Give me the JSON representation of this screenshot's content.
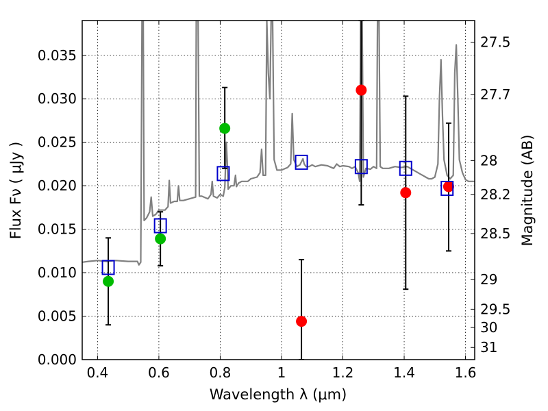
{
  "chart_data": {
    "type": "scatter",
    "title": "",
    "xlabel": "Wavelength  λ (μm)",
    "ylabel": "Flux  Fν  ( μJy )",
    "ylabel_right": "Magnitude (AB)",
    "xlim": [
      0.35,
      1.63
    ],
    "ylim": [
      0.0,
      0.039
    ],
    "grid": true,
    "x_ticks": [
      0.4,
      0.6,
      0.8,
      1.0,
      1.2,
      1.4,
      1.6
    ],
    "x_tick_labels": [
      "0.4",
      "0.6",
      "0.8",
      "1",
      "1.2",
      "1.4",
      "1.6"
    ],
    "y_ticks": [
      0.0,
      0.005,
      0.01,
      0.015,
      0.02,
      0.025,
      0.03,
      0.035
    ],
    "y_tick_labels": [
      "0.000",
      "0.005",
      "0.010",
      "0.015",
      "0.020",
      "0.025",
      "0.030",
      "0.035"
    ],
    "right_ticks": [
      {
        "flux": 0.0365,
        "label": "27.5"
      },
      {
        "flux": 0.0305,
        "label": "27.7"
      },
      {
        "flux": 0.0229,
        "label": "28"
      },
      {
        "flux": 0.019,
        "label": "28.2"
      },
      {
        "flux": 0.0145,
        "label": "28.5"
      },
      {
        "flux": 0.0092,
        "label": "29"
      },
      {
        "flux": 0.0058,
        "label": "29.5"
      },
      {
        "flux": 0.0037,
        "label": "30"
      },
      {
        "flux": 0.0014,
        "label": "31"
      }
    ],
    "series": [
      {
        "kind": "line",
        "color": "#808080",
        "points": [
          [
            0.35,
            0.0112
          ],
          [
            0.37,
            0.0113
          ],
          [
            0.4,
            0.0114
          ],
          [
            0.43,
            0.0113
          ],
          [
            0.46,
            0.0114
          ],
          [
            0.5,
            0.0113
          ],
          [
            0.53,
            0.0113
          ],
          [
            0.535,
            0.0109
          ],
          [
            0.541,
            0.0112
          ],
          [
            0.545,
            0.039
          ],
          [
            0.549,
            0.039
          ],
          [
            0.552,
            0.016
          ],
          [
            0.56,
            0.0163
          ],
          [
            0.57,
            0.017
          ],
          [
            0.575,
            0.0187
          ],
          [
            0.58,
            0.0165
          ],
          [
            0.59,
            0.0167
          ],
          [
            0.6,
            0.0172
          ],
          [
            0.62,
            0.0172
          ],
          [
            0.63,
            0.0176
          ],
          [
            0.634,
            0.0206
          ],
          [
            0.638,
            0.018
          ],
          [
            0.65,
            0.0182
          ],
          [
            0.66,
            0.0182
          ],
          [
            0.664,
            0.02
          ],
          [
            0.668,
            0.0183
          ],
          [
            0.68,
            0.0183
          ],
          [
            0.7,
            0.0185
          ],
          [
            0.72,
            0.0187
          ],
          [
            0.722,
            0.039
          ],
          [
            0.728,
            0.039
          ],
          [
            0.732,
            0.0188
          ],
          [
            0.74,
            0.0188
          ],
          [
            0.76,
            0.0185
          ],
          [
            0.77,
            0.019
          ],
          [
            0.774,
            0.0205
          ],
          [
            0.778,
            0.0188
          ],
          [
            0.79,
            0.0186
          ],
          [
            0.8,
            0.019
          ],
          [
            0.81,
            0.0188
          ],
          [
            0.815,
            0.0198
          ],
          [
            0.82,
            0.025
          ],
          [
            0.823,
            0.0228
          ],
          [
            0.826,
            0.0196
          ],
          [
            0.835,
            0.02
          ],
          [
            0.845,
            0.02
          ],
          [
            0.85,
            0.0212
          ],
          [
            0.853,
            0.0199
          ],
          [
            0.86,
            0.0203
          ],
          [
            0.87,
            0.0205
          ],
          [
            0.88,
            0.0205
          ],
          [
            0.89,
            0.0205
          ],
          [
            0.9,
            0.0208
          ],
          [
            0.92,
            0.021
          ],
          [
            0.93,
            0.0215
          ],
          [
            0.935,
            0.0242
          ],
          [
            0.94,
            0.0212
          ],
          [
            0.948,
            0.0212
          ],
          [
            0.952,
            0.039
          ],
          [
            0.957,
            0.033
          ],
          [
            0.962,
            0.03
          ],
          [
            0.966,
            0.039
          ],
          [
            0.971,
            0.039
          ],
          [
            0.976,
            0.023
          ],
          [
            0.985,
            0.0218
          ],
          [
            1.0,
            0.0218
          ],
          [
            1.02,
            0.0221
          ],
          [
            1.03,
            0.0225
          ],
          [
            1.035,
            0.0283
          ],
          [
            1.04,
            0.023
          ],
          [
            1.05,
            0.0222
          ],
          [
            1.06,
            0.0224
          ],
          [
            1.07,
            0.0231
          ],
          [
            1.074,
            0.0225
          ],
          [
            1.08,
            0.0222
          ],
          [
            1.09,
            0.0222
          ],
          [
            1.1,
            0.0224
          ],
          [
            1.11,
            0.0222
          ],
          [
            1.13,
            0.0224
          ],
          [
            1.15,
            0.0223
          ],
          [
            1.17,
            0.022
          ],
          [
            1.18,
            0.0225
          ],
          [
            1.19,
            0.0222
          ],
          [
            1.2,
            0.0223
          ],
          [
            1.22,
            0.0222
          ],
          [
            1.23,
            0.022
          ],
          [
            1.24,
            0.0222
          ],
          [
            1.25,
            0.0215
          ],
          [
            1.255,
            0.0205
          ],
          [
            1.258,
            0.039
          ],
          [
            1.263,
            0.039
          ],
          [
            1.267,
            0.021
          ],
          [
            1.275,
            0.022
          ],
          [
            1.29,
            0.0219
          ],
          [
            1.3,
            0.0222
          ],
          [
            1.31,
            0.022
          ],
          [
            1.313,
            0.039
          ],
          [
            1.318,
            0.039
          ],
          [
            1.322,
            0.0222
          ],
          [
            1.33,
            0.022
          ],
          [
            1.35,
            0.022
          ],
          [
            1.37,
            0.0222
          ],
          [
            1.39,
            0.0221
          ],
          [
            1.41,
            0.0222
          ],
          [
            1.43,
            0.0218
          ],
          [
            1.44,
            0.0216
          ],
          [
            1.45,
            0.0214
          ],
          [
            1.46,
            0.0212
          ],
          [
            1.47,
            0.021
          ],
          [
            1.48,
            0.0208
          ],
          [
            1.49,
            0.0208
          ],
          [
            1.5,
            0.021
          ],
          [
            1.51,
            0.0225
          ],
          [
            1.515,
            0.03
          ],
          [
            1.52,
            0.0345
          ],
          [
            1.525,
            0.028
          ],
          [
            1.53,
            0.023
          ],
          [
            1.54,
            0.0212
          ],
          [
            1.55,
            0.0208
          ],
          [
            1.56,
            0.0212
          ],
          [
            1.565,
            0.033
          ],
          [
            1.57,
            0.0362
          ],
          [
            1.575,
            0.03
          ],
          [
            1.58,
            0.023
          ],
          [
            1.59,
            0.0215
          ],
          [
            1.6,
            0.0207
          ],
          [
            1.61,
            0.0205
          ],
          [
            1.63,
            0.0205
          ]
        ]
      },
      {
        "kind": "markers",
        "marker": "circle",
        "color": "#00bb00",
        "points": [
          {
            "x": 0.435,
            "y": 0.009,
            "yerr_low": 0.004,
            "yerr_high": 0.014
          },
          {
            "x": 0.605,
            "y": 0.0139,
            "yerr_low": 0.0108,
            "yerr_high": 0.017
          },
          {
            "x": 0.815,
            "y": 0.0266,
            "yerr_low": 0.022,
            "yerr_high": 0.0313
          }
        ]
      },
      {
        "kind": "markers",
        "marker": "circle",
        "color": "#ff0000",
        "points": [
          {
            "x": 1.065,
            "y": 0.0044,
            "yerr_low": 0.0,
            "yerr_high": 0.0115
          },
          {
            "x": 1.26,
            "y": 0.031,
            "yerr_low": 0.0178,
            "yerr_high": 0.039
          },
          {
            "x": 1.405,
            "y": 0.0192,
            "yerr_low": 0.0081,
            "yerr_high": 0.0303
          },
          {
            "x": 1.545,
            "y": 0.0199,
            "yerr_low": 0.0125,
            "yerr_high": 0.0272
          }
        ]
      },
      {
        "kind": "markers",
        "marker": "square",
        "color": "#0000cc",
        "points": [
          {
            "x": 0.435,
            "y": 0.0106
          },
          {
            "x": 0.605,
            "y": 0.0154
          },
          {
            "x": 0.81,
            "y": 0.0214
          },
          {
            "x": 1.065,
            "y": 0.0227
          },
          {
            "x": 1.26,
            "y": 0.0222
          },
          {
            "x": 1.405,
            "y": 0.022
          },
          {
            "x": 1.54,
            "y": 0.0197
          }
        ]
      }
    ]
  }
}
